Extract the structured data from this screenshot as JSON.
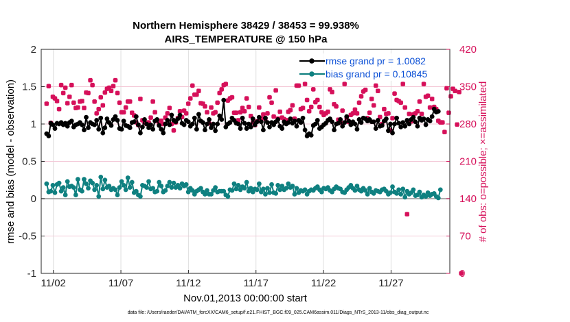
{
  "chart_data": {
    "type": "line",
    "title": "Northern Hemisphere 38429 / 38453 = 99.938%",
    "subtitle": "AIRS_TEMPERATURE @ 150 hPa",
    "xlabel": "Nov.01,2013 00:00:00 start",
    "ylabel": "rmse and bias (model - observation)",
    "ylabel_right": "# of obs: o=possible; ×=assimilated",
    "footer": "data file: /Users/raeder/DAI/ATM_forcXX/CAM6_setup/f.e21.FHIST_BGC.f09_025.CAM6assim.011/Diags_NTrS_2013-11/obs_diag_output.nc",
    "xlim": [
      0.6,
      30.85
    ],
    "ylim": [
      -1,
      2
    ],
    "ylim_right": [
      0,
      420
    ],
    "x_ticks": [
      1.5,
      6.5,
      11.5,
      16.5,
      21.5,
      26.5
    ],
    "x_tick_labels": [
      "11/02",
      "11/07",
      "11/12",
      "11/17",
      "11/22",
      "11/27"
    ],
    "y_ticks": [
      -1,
      -0.5,
      0,
      0.5,
      1,
      1.5,
      2
    ],
    "y_tick_labels": [
      "-1",
      "-0.5",
      "0",
      "0.5",
      "1",
      "1.5",
      "2"
    ],
    "y_right_ticks": [
      0,
      70,
      140,
      210,
      280,
      350,
      420
    ],
    "y_right_tick_labels": [
      "0",
      "70",
      "140",
      "210",
      "280",
      "350",
      "420"
    ],
    "grid": true,
    "colors": {
      "rmse": "#000000",
      "bias": "#0f8080",
      "obs": "#d6105a",
      "legend_text": "#0a4fd6",
      "zero_line": "#a0a0a0"
    },
    "legend": {
      "placement": "top-right",
      "entries": [
        "rmse grand pr = 1.0082",
        "bias grand pr = 0.10845"
      ]
    },
    "series": [
      {
        "name": "rmse grand pr = 1.0082",
        "values": [
          0.87,
          0.84,
          1.01,
          0.99,
          0.94,
          1.01,
          1.0,
          1.02,
          0.99,
          1.01,
          0.97,
          1.02,
          1.04,
          0.96,
          0.99,
          1.0,
          1.02,
          0.99,
          0.92,
          1.09,
          0.95,
          1.02,
          1.0,
          0.99,
          1.05,
          0.93,
          1.08,
          0.88,
          0.95,
          1.07,
          1.02,
          0.98,
          1.06,
          1.1,
          1.05,
          0.94,
          0.93,
          1.04,
          0.98,
          0.97,
          0.95,
          1.02,
          1.03,
          1.1,
          0.99,
          0.88,
          0.96,
          1.06,
          1.0,
          0.95,
          0.99,
          0.93,
          1.04,
          1.06,
          0.98,
          0.93,
          0.88,
          1.0,
          1.05,
          0.99,
          1.12,
          1.05,
          1.03,
          1.07,
          1.12,
          1.01,
          0.99,
          1.05,
          1.03,
          0.97,
          1.0,
          1.08,
          0.93,
          1.13,
          1.04,
          1.02,
          0.92,
          1.0,
          1.06,
          0.95,
          1.0,
          0.91,
          1.0,
          1.11,
          1.06,
          1.32,
          0.96,
          1.0,
          1.02,
          1.08,
          1.05,
          1.01,
          1.0,
          0.94,
          1.08,
          1.01,
          0.94,
          1.0,
          0.96,
          1.07,
          0.99,
          1.03,
          1.09,
          1.03,
          0.92,
          1.08,
          1.02,
          0.96,
          1.02,
          0.99,
          1.03,
          1.06,
          0.97,
          0.94,
          1.03,
          1.0,
          1.02,
          1.07,
          1.01,
          1.04,
          0.97,
          1.05,
          1.02,
          1.08,
          0.92,
          0.84,
          0.87,
          0.85,
          0.98,
          1.0,
          1.05,
          0.94,
          0.96,
          0.99,
          1.01,
          1.05,
          1.07,
          1.03,
          0.92,
          1.0,
          1.01,
          1.06,
          0.97,
          1.02,
          1.1,
          1.04,
          0.99,
          1.03,
          1.0,
          0.93,
          1.06,
          1.02,
          1.08,
          1.07,
          1.04,
          1.06,
          1.03,
          1.03,
          0.94,
          1.05,
          0.97,
          0.98,
          1.04,
          1.07,
          0.91,
          1.0,
          0.88,
          1.0,
          1.08,
          1.01,
          0.96,
          1.02,
          0.97,
          1.05,
          1.0,
          1.06,
          1.09,
          1.03,
          0.97,
          1.08,
          1.05,
          1.07,
          0.99,
          1.06,
          1.04,
          1.1,
          1.2,
          1.16,
          1.17
        ]
      },
      {
        "name": "bias grand pr = 0.10845",
        "values": [
          0.2,
          0.09,
          0.1,
          0.18,
          0.08,
          0.19,
          0.21,
          0.1,
          0.15,
          0.05,
          0.23,
          0.16,
          0.17,
          0.15,
          0.05,
          0.26,
          0.12,
          0.1,
          0.26,
          0.2,
          0.14,
          0.24,
          0.21,
          0.12,
          0.18,
          0.03,
          0.29,
          0.13,
          0.25,
          0.15,
          0.17,
          0.12,
          0.14,
          0.12,
          0.05,
          0.15,
          0.23,
          0.18,
          0.12,
          0.28,
          0.15,
          0.22,
          0.08,
          0.1,
          0.05,
          0.03,
          0.18,
          0.17,
          0.15,
          0.23,
          0.13,
          0.14,
          0.09,
          0.1,
          0.22,
          0.17,
          0.09,
          0.11,
          0.17,
          0.22,
          0.15,
          0.21,
          0.15,
          0.18,
          0.14,
          0.2,
          0.17,
          0.19,
          0.09,
          0.14,
          0.11,
          0.06,
          0.1,
          0.12,
          0.14,
          0.09,
          0.06,
          0.11,
          0.06,
          0.06,
          0.11,
          0.15,
          0.09,
          0.1,
          0.1,
          0.1,
          0.05,
          0.03,
          0.12,
          0.11,
          0.2,
          0.13,
          0.18,
          0.12,
          0.16,
          0.14,
          0.22,
          0.1,
          0.14,
          0.09,
          0.13,
          0.12,
          0.2,
          0.09,
          0.13,
          0.06,
          0.14,
          0.08,
          0.19,
          0.08,
          0.07,
          0.18,
          0.12,
          0.17,
          0.12,
          0.14,
          0.2,
          0.15,
          0.17,
          0.06,
          0.14,
          0.08,
          0.11,
          0.1,
          0.12,
          0.06,
          0.1,
          0.12,
          0.11,
          0.14,
          0.16,
          0.12,
          0.09,
          0.14,
          0.13,
          0.15,
          0.11,
          0.09,
          0.13,
          0.16,
          0.14,
          0.13,
          0.09,
          0.08,
          0.12,
          0.15,
          0.18,
          0.14,
          0.11,
          0.17,
          0.12,
          0.1,
          0.14,
          0.11,
          0.06,
          0.14,
          0.09,
          0.07,
          0.11,
          0.1,
          0.09,
          0.12,
          0.13,
          0.1,
          0.06,
          0.08,
          0.16,
          0.09,
          0.07,
          0.12,
          0.06,
          0.13,
          0.02,
          0.1,
          0.06,
          0.08,
          0.12,
          0.04,
          0.05,
          0.09,
          0.02,
          0.05,
          0.03,
          0.08,
          0.04,
          0.06,
          0.07,
          0.03,
          0.01,
          0.12
        ]
      },
      {
        "name": "# of obs assimilated",
        "values": [
          318,
          351,
          282,
          331,
          328,
          323,
          308,
          353,
          338,
          348,
          319,
          331,
          353,
          320,
          310,
          311,
          322,
          323,
          310,
          339,
          338,
          362,
          353,
          322,
          300,
          308,
          330,
          315,
          339,
          346,
          348,
          342,
          351,
          362,
          338,
          320,
          302,
          302,
          311,
          322,
          322,
          301,
          296,
          283,
          278,
          327,
          287,
          283,
          280,
          283,
          292,
          322,
          302,
          286,
          280,
          286,
          280,
          292,
          300,
          310,
          280,
          268,
          283,
          291,
          304,
          293,
          305,
          300,
          318,
          328,
          352,
          335,
          335,
          342,
          319,
          318,
          313,
          302,
          281,
          311,
          300,
          302,
          320,
          338,
          345,
          353,
          355,
          324,
          328,
          330,
          301,
          301,
          287,
          302,
          310,
          304,
          328,
          312,
          295,
          283,
          278,
          285,
          311,
          290,
          298,
          290,
          300,
          330,
          320,
          294,
          343,
          290,
          303,
          292,
          289,
          287,
          303,
          306,
          315,
          290,
          352,
          352,
          308,
          310,
          355,
          325,
          304,
          312,
          345,
          321,
          325,
          312,
          302,
          297,
          300,
          303,
          345,
          340,
          317,
          313,
          288,
          283,
          305,
          355,
          291,
          284,
          297,
          300,
          307,
          300,
          320,
          332,
          341,
          344,
          291,
          301,
          327,
          315,
          352,
          342,
          293,
          280,
          308,
          299,
          300,
          268,
          291,
          337,
          325,
          323,
          320,
          355,
          311,
          111,
          299,
          285,
          298,
          300,
          304,
          322,
          299,
          355,
          331,
          333,
          311,
          327,
          312,
          308,
          286,
          283,
          283,
          265,
          347,
          301,
          332,
          346,
          342,
          279,
          340,
          0
        ]
      }
    ]
  }
}
